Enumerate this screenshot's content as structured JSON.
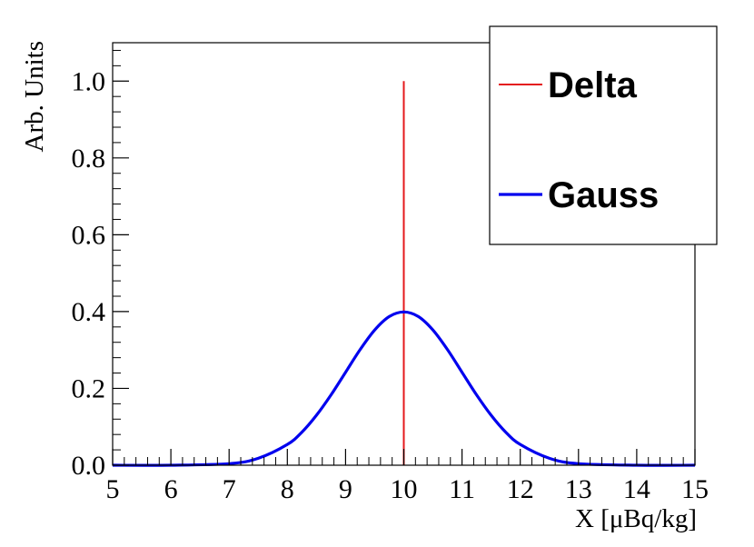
{
  "chart_data": {
    "type": "line",
    "title": "",
    "xlabel": "X [μBq/kg]",
    "ylabel": "Arb. Units",
    "xlim": [
      5,
      15
    ],
    "ylim": [
      0,
      1.1
    ],
    "x_ticks": [
      5,
      6,
      7,
      8,
      9,
      10,
      11,
      12,
      13,
      14,
      15
    ],
    "x_tick_labels": [
      "5",
      "6",
      "7",
      "8",
      "9",
      "10",
      "11",
      "12",
      "13",
      "14",
      "15"
    ],
    "y_ticks": [
      0,
      0.2,
      0.4,
      0.6,
      0.8,
      1.0
    ],
    "y_tick_labels": [
      "0.0",
      "0.2",
      "0.4",
      "0.6",
      "0.8",
      "1.0"
    ],
    "grid": false,
    "legend_position": "top-right",
    "series": [
      {
        "name": "Delta",
        "color": "#e41a1c",
        "kind": "vertical-line",
        "x": [
          10,
          10
        ],
        "y": [
          0,
          1.0
        ]
      },
      {
        "name": "Gauss",
        "color": "#0000ee",
        "kind": "curve",
        "x": [
          5,
          6,
          7,
          7.5,
          8,
          8.25,
          8.5,
          8.75,
          9,
          9.25,
          9.5,
          9.75,
          10,
          10.25,
          10.5,
          10.75,
          11,
          11.25,
          11.5,
          11.75,
          12,
          12.5,
          13,
          14,
          15
        ],
        "y": [
          0,
          0,
          0.004,
          0.018,
          0.054,
          0.086,
          0.13,
          0.183,
          0.242,
          0.301,
          0.352,
          0.387,
          0.399,
          0.387,
          0.352,
          0.301,
          0.242,
          0.183,
          0.13,
          0.086,
          0.054,
          0.018,
          0.004,
          0,
          0
        ]
      }
    ]
  }
}
